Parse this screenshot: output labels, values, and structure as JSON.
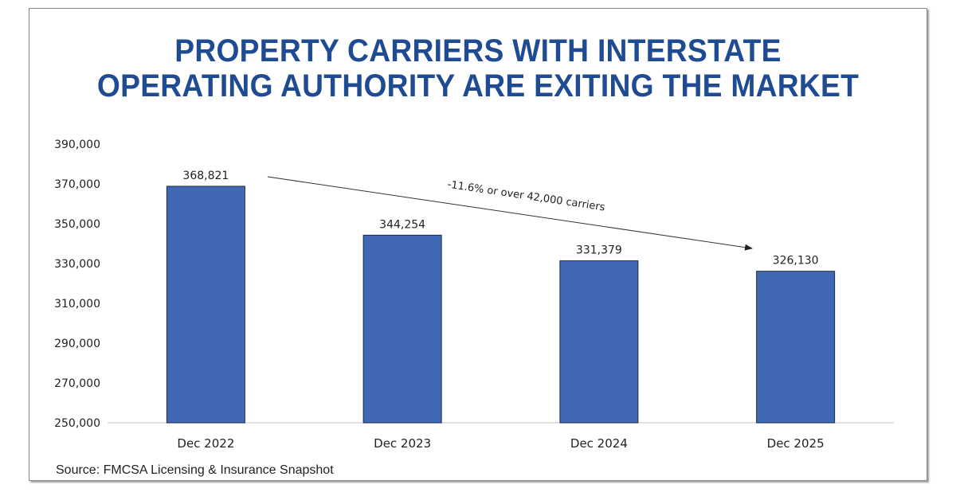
{
  "chart_data": {
    "type": "bar",
    "title": [
      "PROPERTY CARRIERS WITH INTERSTATE",
      "OPERATING AUTHORITY ARE EXITING THE MARKET"
    ],
    "categories": [
      "Dec 2022",
      "Dec 2023",
      "Dec 2024",
      "Dec 2025"
    ],
    "values": [
      368821,
      344254,
      331379,
      326130
    ],
    "data_labels": [
      "368,821",
      "344,254",
      "331,379",
      "326,130"
    ],
    "ylim": [
      250000,
      390000
    ],
    "yticks": [
      250000,
      270000,
      290000,
      310000,
      330000,
      350000,
      370000,
      390000
    ],
    "ytick_labels": [
      "250,000",
      "270,000",
      "290,000",
      "310,000",
      "330,000",
      "350,000",
      "370,000",
      "390,000"
    ],
    "grid": false,
    "bar_color": "#4169b3",
    "title_color": "#1f4b93",
    "annotation": "-11.6% or over 42,000 carriers",
    "source": "Source: FMCSA Licensing & Insurance Snapshot"
  }
}
